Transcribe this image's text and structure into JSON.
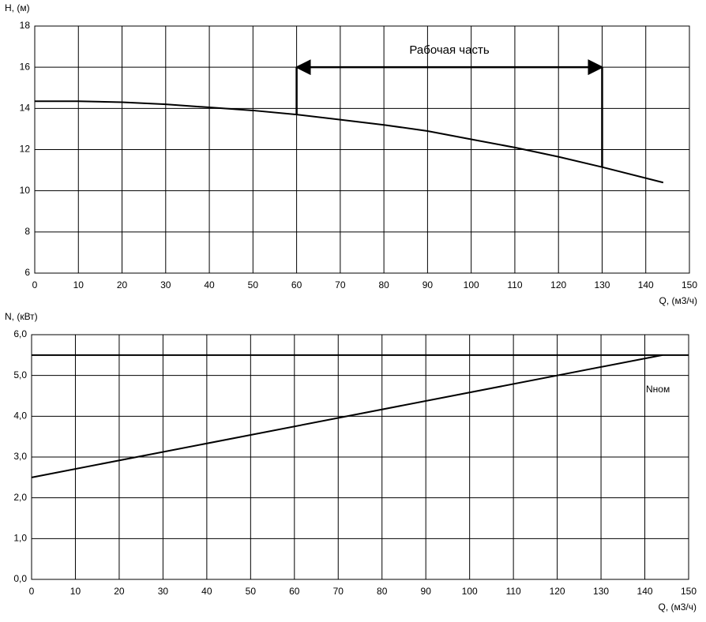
{
  "chart_data": [
    {
      "type": "line",
      "ylabel": "H, (м)",
      "xlabel": "Q, (м3/ч)",
      "x": [
        0,
        10,
        20,
        30,
        40,
        50,
        60,
        70,
        80,
        90,
        100,
        110,
        120,
        130,
        144
      ],
      "series": [
        {
          "color": "#000000",
          "values": [
            14.35,
            14.35,
            14.3,
            14.2,
            14.05,
            13.9,
            13.7,
            13.45,
            13.2,
            12.9,
            12.5,
            12.1,
            11.65,
            11.15,
            10.4
          ]
        }
      ],
      "xlim": [
        0,
        150
      ],
      "xticks": [
        0,
        10,
        20,
        30,
        40,
        50,
        60,
        70,
        80,
        90,
        100,
        110,
        120,
        130,
        140,
        150
      ],
      "ylim": [
        6,
        18
      ],
      "yticks": [
        6,
        8,
        10,
        12,
        14,
        16,
        18
      ],
      "grid": true,
      "working_range": {
        "label": "Рабочая часть",
        "x": [
          60,
          130
        ],
        "y": 16
      }
    },
    {
      "type": "line",
      "ylabel": "N, (кВт)",
      "xlabel": "Q, (м3/ч)",
      "x": [
        0,
        144
      ],
      "series": [
        {
          "color": "#000000",
          "values": [
            2.5,
            5.5
          ]
        }
      ],
      "xlim": [
        0,
        150
      ],
      "xticks": [
        0,
        10,
        20,
        30,
        40,
        50,
        60,
        70,
        80,
        90,
        100,
        110,
        120,
        130,
        140,
        150
      ],
      "ylim": [
        0,
        6
      ],
      "yticks": [
        {
          "value": 0,
          "label": "0,0"
        },
        {
          "value": 1,
          "label": "1,0"
        },
        {
          "value": 2,
          "label": "2,0"
        },
        {
          "value": 3,
          "label": "3,0"
        },
        {
          "value": 4,
          "label": "4,0"
        },
        {
          "value": 5,
          "label": "5,0"
        },
        {
          "value": 6,
          "label": "6,0"
        }
      ],
      "grid": true,
      "reference_line": {
        "label": "Nном",
        "value": 5.5
      }
    }
  ]
}
